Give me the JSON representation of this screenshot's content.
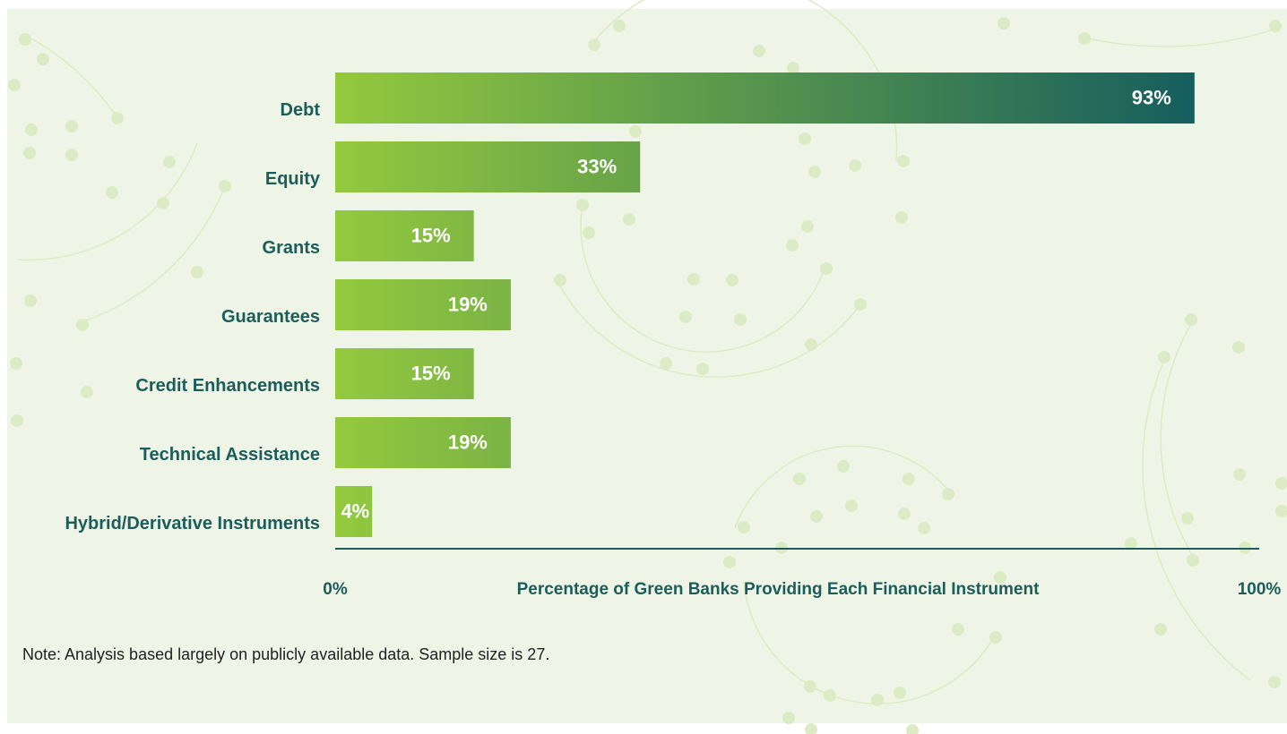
{
  "chart_data": {
    "type": "barh",
    "categories": [
      "Debt",
      "Equity",
      "Grants",
      "Guarantees",
      "Credit Enhancements",
      "Technical Assistance",
      "Hybrid/Derivative Instruments"
    ],
    "values": [
      93,
      33,
      15,
      19,
      15,
      19,
      4
    ],
    "value_labels": [
      "93%",
      "33%",
      "15%",
      "19%",
      "15%",
      "19%",
      "4%"
    ],
    "colors": [
      "#94c93e",
      "#165e5e"
    ],
    "x_label": "Percentage of Green Banks Providing Each Financial Instrument",
    "xlim": [
      0,
      100
    ],
    "xticks": [
      {
        "value": 0,
        "label": "0%"
      },
      {
        "value": 100,
        "label": "100%"
      }
    ],
    "note": "Note: Analysis based largely on publicly available data. Sample size is 27."
  }
}
